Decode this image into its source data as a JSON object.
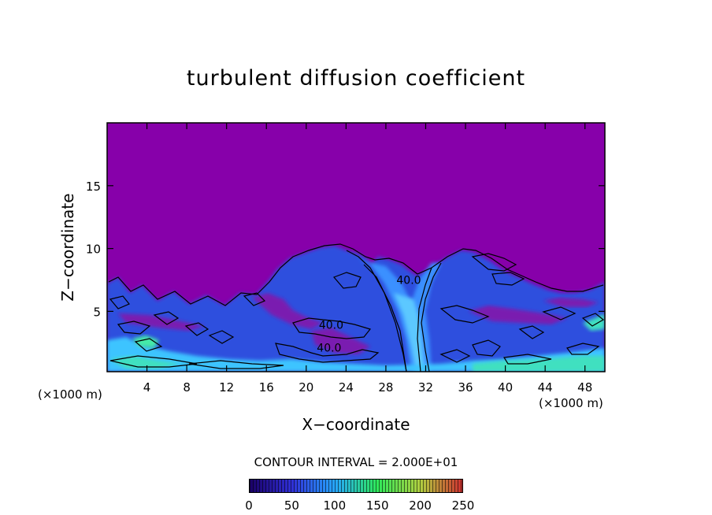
{
  "chart_data": {
    "type": "heatmap",
    "title": "turbulent diffusion coefficient",
    "xlabel": "X−coordinate",
    "ylabel": "Z−coordinate",
    "x_unit_label": "(×1000 m)",
    "xlim": [
      0,
      50
    ],
    "ylim": [
      0.2,
      20
    ],
    "x_ticks": [
      4,
      8,
      12,
      16,
      20,
      24,
      28,
      32,
      36,
      40,
      44,
      48
    ],
    "y_ticks": [
      5,
      10,
      15
    ],
    "contour_interval_text": "CONTOUR INTERVAL = 2.000E+01",
    "contour_labels": [
      {
        "text": "40.0",
        "x": 30.3,
        "z": 7.2
      },
      {
        "text": "40.0",
        "x": 22.5,
        "z": 3.6
      },
      {
        "text": "40.0",
        "x": 22.3,
        "z": 1.8
      }
    ],
    "colorbar": {
      "min": 0,
      "max": 250,
      "tick_labels": [
        "0",
        "50",
        "100",
        "150",
        "200",
        "250"
      ],
      "colors": [
        "#1a0066",
        "#3030d8",
        "#26a6ff",
        "#2ee85a",
        "#b0d040",
        "#d03030"
      ]
    },
    "colors": {
      "background_field": "#8700aa",
      "mid_field": "#2e52e0",
      "high_field": "#3ec0ff",
      "peak_field": "#38e8b0"
    }
  }
}
